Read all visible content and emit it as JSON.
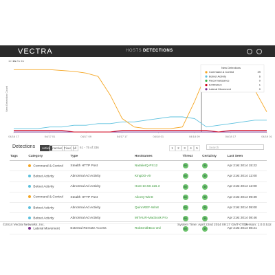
{
  "header": {
    "logo": "VECTRA",
    "nav": [
      "HOSTS",
      "DETECTIONS"
    ]
  },
  "chart_data": {
    "type": "line",
    "ranges": [
      "1d",
      "1w",
      "2w",
      "4w"
    ],
    "y_label": "New Detection Count",
    "categories": [
      "04/16 17",
      null,
      null,
      "04/17 01",
      null,
      null,
      "04/17 09",
      null,
      null,
      "04/17 17",
      null,
      null,
      "04/18 01",
      null,
      null,
      "04/18 09",
      null,
      null,
      "04/18 17",
      null,
      null,
      "04/19 01"
    ],
    "ylim": [
      0,
      40
    ],
    "legend": {
      "title": "New Detections"
    },
    "series": [
      {
        "name": "Command & Control",
        "color": "#f5a623",
        "total": 39,
        "values": [
          37,
          37,
          37,
          37,
          36.5,
          36,
          35,
          33,
          22,
          8,
          3,
          2,
          2,
          2,
          3,
          18,
          35,
          37,
          36,
          32,
          25,
          12
        ]
      },
      {
        "name": "Botnet Activity",
        "color": "#5bc0de",
        "total": 6,
        "values": [
          2,
          2,
          2,
          3,
          3,
          4,
          4,
          5,
          5,
          6,
          6,
          7,
          8,
          9,
          9,
          8,
          3,
          4,
          5,
          6,
          7,
          7
        ]
      },
      {
        "name": "Reconnaissance",
        "color": "#3cb44b",
        "total": 0,
        "values": [
          0,
          0,
          0,
          0,
          0,
          0,
          0,
          0,
          0,
          0,
          0,
          0,
          0,
          0,
          0,
          0,
          0,
          0,
          0,
          0,
          0,
          0
        ]
      },
      {
        "name": "Exfiltration",
        "color": "#d0021b",
        "total": 1,
        "values": [
          1,
          1,
          1,
          1,
          1,
          0,
          0,
          0,
          0,
          1,
          1,
          1,
          1,
          1,
          1,
          1,
          1,
          0,
          1,
          1,
          1,
          1
        ]
      },
      {
        "name": "Lateral Movement",
        "color": "#7b2d8e",
        "total": 0,
        "values": [
          0,
          0,
          0,
          0,
          0,
          0,
          0,
          0,
          0,
          0,
          0,
          0,
          0,
          0,
          0,
          0,
          0,
          0,
          0,
          0,
          0,
          0
        ]
      }
    ]
  },
  "detections": {
    "title": "Detections",
    "filters": [
      "Active",
      "Inactive",
      "Fixed",
      "All"
    ],
    "range": "61 - 75 of 336",
    "pages": [
      "1",
      "2",
      "3",
      "4",
      "5"
    ],
    "search": "Search",
    "columns": [
      "Tags",
      "Category",
      "Type",
      "Hostnames",
      "Threat",
      "Certainty",
      "Last Seen"
    ],
    "rows": [
      {
        "category": "Command & Control",
        "color": "#f5a623",
        "type": "Stealth HTTP Post",
        "host": "NatalieIQ-PX12",
        "threat": 30,
        "certainty": 30,
        "last": "Apr 21st 2014 15:22"
      },
      {
        "category": "Botnet Activity",
        "color": "#5bc0de",
        "type": "Abnormal Ad Activity",
        "host": "KingDD-Air",
        "threat": 30,
        "certainty": 30,
        "last": "Apr 21st 2014 12:00"
      },
      {
        "category": "Botnet Activity",
        "color": "#5bc0de",
        "type": "Abnormal Ad Activity",
        "host": "Host-10.50.116.3",
        "threat": 30,
        "certainty": 30,
        "last": "Apr 21st 2014 12:00"
      },
      {
        "category": "Command & Control",
        "color": "#f5a623",
        "type": "Stealth HTTP Post",
        "host": "AliceQ-Win8",
        "threat": 50,
        "certainty": 30,
        "last": "Apr 21st 2014 09:39"
      },
      {
        "category": "Botnet Activity",
        "color": "#5bc0de",
        "type": "Abnormal Ad Activity",
        "host": "QuinnREF-Win8",
        "threat": 30,
        "certainty": 30,
        "last": "Apr 21st 2014 09:00"
      },
      {
        "category": "Botnet Activity",
        "color": "#5bc0de",
        "type": "Abnormal Ad Activity",
        "host": "MITAUR-Macbook Pro",
        "threat": 30,
        "certainty": 30,
        "last": "Apr 21st 2014 08:46"
      },
      {
        "category": "Lateral Movement",
        "color": "#7b2d8e",
        "type": "External Remote Access",
        "host": "RobSmithBox-3rd",
        "threat": 50,
        "certainty": 30,
        "last": "Apr 21st 2014 08:21"
      }
    ]
  },
  "footer": {
    "copyright": "©2014 Vectra Networks, Inc.",
    "time": "System Time: April 22nd 2014 09:17 GMT-0700",
    "version": "Version: 1.0.0.532"
  }
}
